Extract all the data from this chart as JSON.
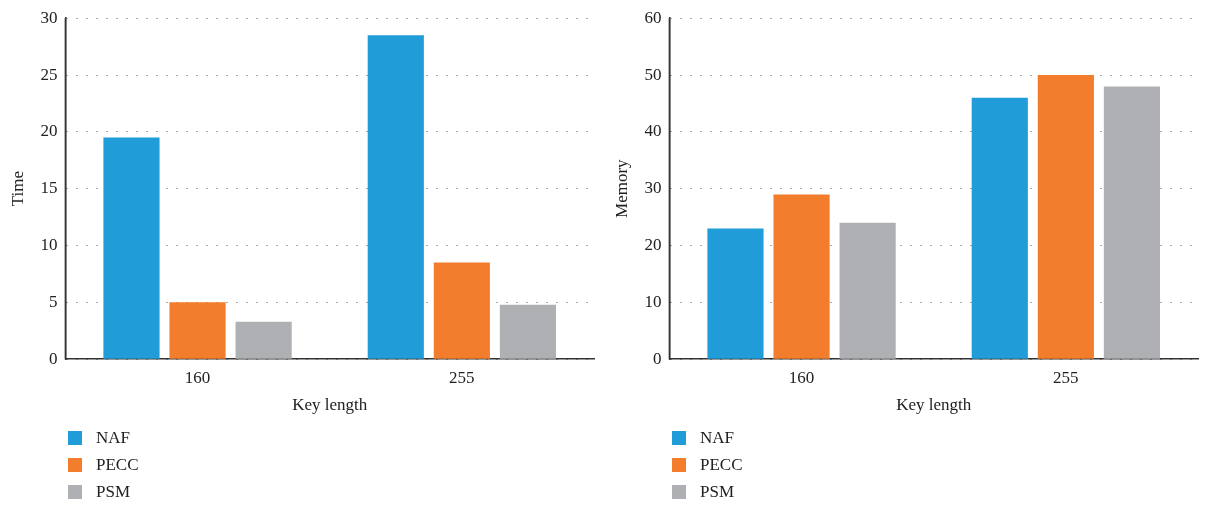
{
  "chart_data": [
    {
      "type": "bar",
      "xlabel": "Key length",
      "ylabel": "Time",
      "categories": [
        "160",
        "255"
      ],
      "ylim": [
        0,
        30
      ],
      "yticks": [
        0,
        5,
        10,
        15,
        20,
        25,
        30
      ],
      "grid": "y",
      "legend": "bottom left",
      "series": [
        {
          "name": "NAF",
          "color": "#209cd8",
          "values": [
            19.5,
            28.5
          ]
        },
        {
          "name": "PECC",
          "color": "#f27d2c",
          "values": [
            5,
            8.5
          ]
        },
        {
          "name": "PSM",
          "color": "#afb0b3",
          "values": [
            3.3,
            4.8
          ]
        }
      ]
    },
    {
      "type": "bar",
      "xlabel": "Key length",
      "ylabel": "Memory",
      "categories": [
        "160",
        "255"
      ],
      "ylim": [
        0,
        60
      ],
      "yticks": [
        0,
        10,
        20,
        30,
        40,
        50,
        60
      ],
      "grid": "y",
      "legend": "bottom left",
      "series": [
        {
          "name": "NAF",
          "color": "#209cd8",
          "values": [
            23,
            46
          ]
        },
        {
          "name": "PECC",
          "color": "#f27d2c",
          "values": [
            29,
            50
          ]
        },
        {
          "name": "PSM",
          "color": "#afb0b3",
          "values": [
            24,
            48
          ]
        }
      ]
    }
  ]
}
